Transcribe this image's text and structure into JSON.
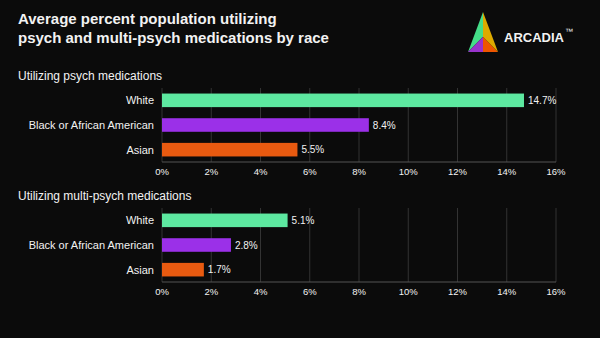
{
  "title": "Average percent population utilizing\npsych and multi-psych medications by race",
  "annotations": [
    "ARCADIA",
    "™"
  ],
  "chart_data": [
    {
      "type": "bar",
      "orientation": "horizontal",
      "title": "Utilizing psych medications",
      "categories": [
        "White",
        "Black or African American",
        "Asian"
      ],
      "values": [
        14.7,
        8.4,
        5.5
      ],
      "value_labels": [
        "14.7%",
        "8.4%",
        "5.5%"
      ],
      "colors": [
        "#5de8a0",
        "#9b30e8",
        "#e85a10"
      ],
      "xlim": [
        0,
        16
      ],
      "xticks": [
        {
          "value": 0,
          "label": "0%"
        },
        {
          "value": 2,
          "label": "2%"
        },
        {
          "value": 4,
          "label": "4%"
        },
        {
          "value": 6,
          "label": "6%"
        },
        {
          "value": 8,
          "label": "8%"
        },
        {
          "value": 10,
          "label": "10%"
        },
        {
          "value": 12,
          "label": "12%"
        },
        {
          "value": 14,
          "label": "14%"
        },
        {
          "value": 16,
          "label": "16%"
        }
      ],
      "grid": true,
      "data_labels": true
    },
    {
      "type": "bar",
      "orientation": "horizontal",
      "title": "Utilizing multi-psych medications",
      "categories": [
        "White",
        "Black or African American",
        "Asian"
      ],
      "values": [
        5.1,
        2.8,
        1.7
      ],
      "value_labels": [
        "5.1%",
        "2.8%",
        "1.7%"
      ],
      "colors": [
        "#5de8a0",
        "#9b30e8",
        "#e85a10"
      ],
      "xlim": [
        0,
        16
      ],
      "xticks": [
        {
          "value": 0,
          "label": "0%"
        },
        {
          "value": 2,
          "label": "2%"
        },
        {
          "value": 4,
          "label": "4%"
        },
        {
          "value": 6,
          "label": "6%"
        },
        {
          "value": 8,
          "label": "8%"
        },
        {
          "value": 10,
          "label": "10%"
        },
        {
          "value": 12,
          "label": "12%"
        },
        {
          "value": 14,
          "label": "14%"
        },
        {
          "value": 16,
          "label": "16%"
        }
      ],
      "grid": true,
      "data_labels": true
    }
  ]
}
